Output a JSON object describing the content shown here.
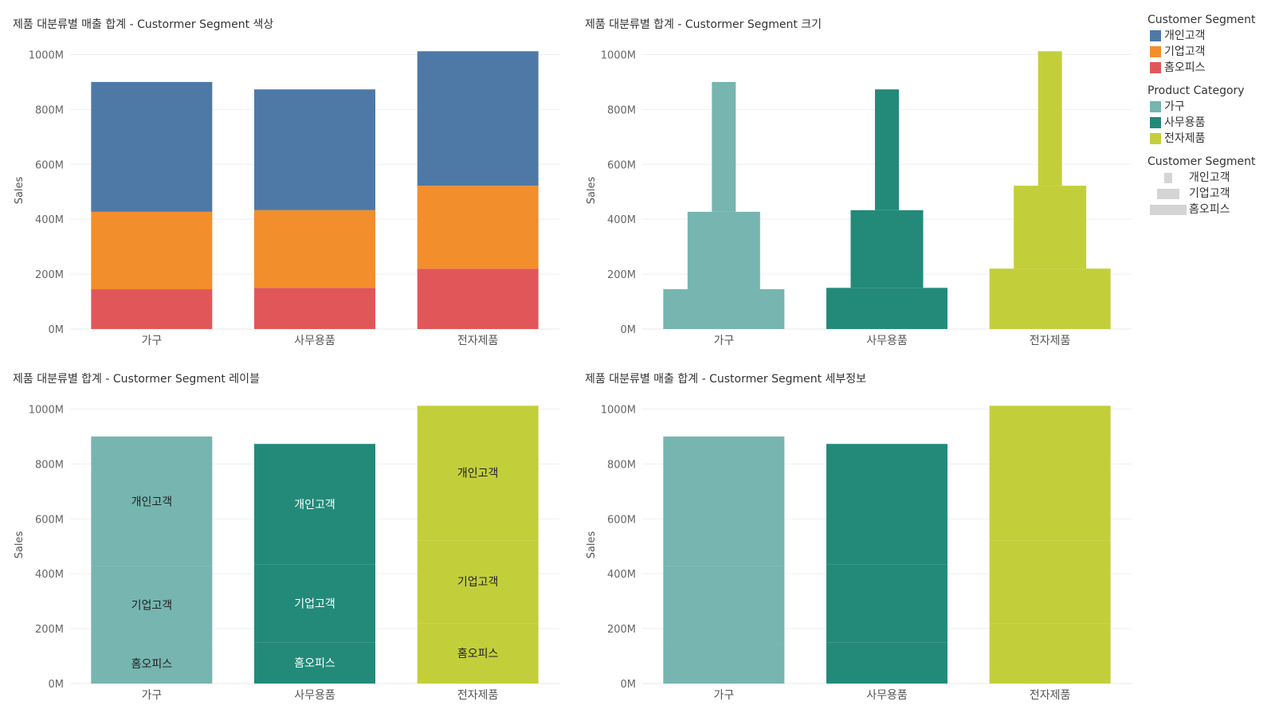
{
  "colors": {
    "segments": [
      "#4e79a7",
      "#f28e2b",
      "#e15759"
    ],
    "categories": [
      "#76b5b0",
      "#238a7a",
      "#c3cf3a"
    ],
    "axis_text": "#666666",
    "size_swatch": "#d4d4d4"
  },
  "legend": {
    "segment_color_title": "Customer Segment",
    "category_title": "Product Category",
    "segment_size_title": "Customer Segment"
  },
  "chart_data": [
    {
      "type": "bar",
      "stacked": true,
      "title": "제품 대분류별 매출 합계 - Custormer Segment 색상",
      "ylabel": "Sales",
      "xlabel": "",
      "categories": [
        "가구",
        "사무용품",
        "전자제품"
      ],
      "series": [
        {
          "name": "홈오피스",
          "values": [
            145,
            150,
            220
          ]
        },
        {
          "name": "기업고객",
          "values": [
            282,
            283,
            302
          ]
        },
        {
          "name": "개인고객",
          "values": [
            473,
            440,
            490
          ]
        }
      ],
      "yticks": [
        "0M",
        "200M",
        "400M",
        "600M",
        "800M",
        "1000M"
      ],
      "ylim": [
        0,
        1010
      ],
      "color_by": "segment",
      "grid": true
    },
    {
      "type": "bar",
      "stacked": true,
      "title": "제품 대분류별  합계 - Custormer Segment 크기",
      "ylabel": "Sales",
      "xlabel": "",
      "categories": [
        "가구",
        "사무용품",
        "전자제품"
      ],
      "series": [
        {
          "name": "홈오피스",
          "values": [
            145,
            150,
            220
          ]
        },
        {
          "name": "기업고객",
          "values": [
            282,
            283,
            302
          ]
        },
        {
          "name": "개인고객",
          "values": [
            473,
            440,
            490
          ]
        }
      ],
      "yticks": [
        "0M",
        "200M",
        "400M",
        "600M",
        "800M",
        "1000M"
      ],
      "ylim": [
        0,
        1010
      ],
      "color_by": "category",
      "size_by": "segment",
      "grid": true
    },
    {
      "type": "bar",
      "stacked": true,
      "title": "제품 대분류별 합계 - Custormer Segment 레이블",
      "ylabel": "Sales",
      "xlabel": "",
      "categories": [
        "가구",
        "사무용품",
        "전자제품"
      ],
      "series": [
        {
          "name": "홈오피스",
          "values": [
            145,
            150,
            220
          ]
        },
        {
          "name": "기업고객",
          "values": [
            282,
            283,
            302
          ]
        },
        {
          "name": "개인고객",
          "values": [
            473,
            440,
            490
          ]
        }
      ],
      "yticks": [
        "0M",
        "200M",
        "400M",
        "600M",
        "800M",
        "1000M"
      ],
      "ylim": [
        0,
        1010
      ],
      "color_by": "category",
      "segment_labels": true,
      "grid": true
    },
    {
      "type": "bar",
      "stacked": true,
      "title": "제품 대분류별 매출 합계 - Custormer Segment 세부정보",
      "ylabel": "Sales",
      "xlabel": "",
      "categories": [
        "가구",
        "사무용품",
        "전자제품"
      ],
      "series": [
        {
          "name": "홈오피스",
          "values": [
            145,
            150,
            220
          ]
        },
        {
          "name": "기업고객",
          "values": [
            282,
            283,
            302
          ]
        },
        {
          "name": "개인고객",
          "values": [
            473,
            440,
            490
          ]
        }
      ],
      "yticks": [
        "0M",
        "200M",
        "400M",
        "600M",
        "800M",
        "1000M"
      ],
      "ylim": [
        0,
        1010
      ],
      "color_by": "category",
      "grid": true
    }
  ]
}
